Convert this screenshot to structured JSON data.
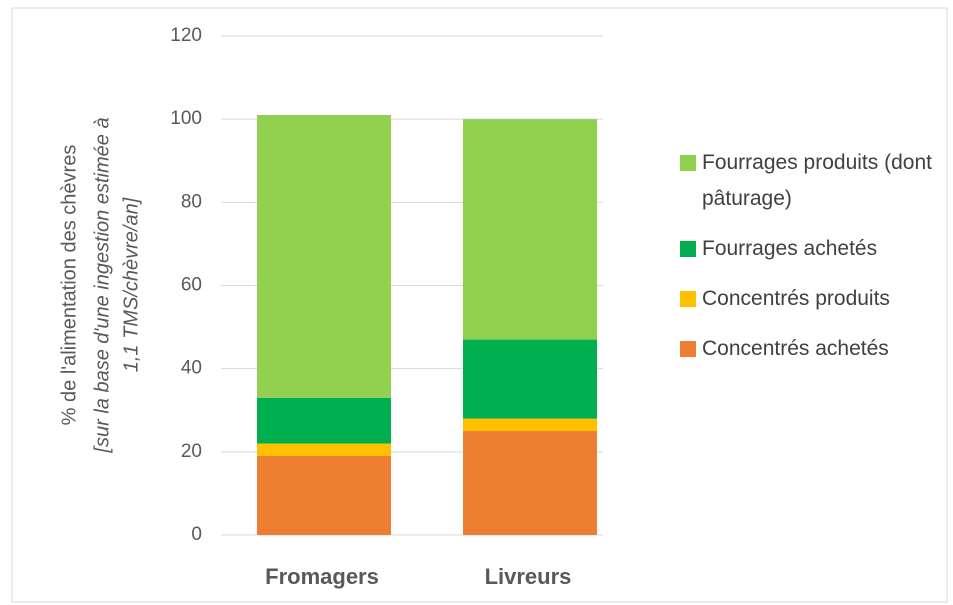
{
  "chart_data": {
    "type": "stacked_bar",
    "ylabel": "% de l'alimentation des chèvres",
    "ylabel_note": [
      "[sur la base d'une ingestion estimée à",
      "1,1 TMS/chèvre/an]"
    ],
    "categories": [
      "Fromagers",
      "Livreurs"
    ],
    "series": [
      {
        "name": "Concentrés achetés",
        "color": "#ed7d31",
        "values": [
          19,
          25
        ]
      },
      {
        "name": "Concentrés produits",
        "color": "#ffc000",
        "values": [
          3,
          3
        ]
      },
      {
        "name": "Fourrages achetés",
        "color": "#00b050",
        "values": [
          11,
          19
        ]
      },
      {
        "name": "Fourrages produits (dont pâturage)",
        "color": "#92d050",
        "values": [
          68,
          53
        ]
      }
    ],
    "ylim": [
      0,
      120
    ],
    "yticks": [
      0,
      20,
      40,
      60,
      80,
      100,
      120
    ],
    "grid": true,
    "legend": "right"
  }
}
